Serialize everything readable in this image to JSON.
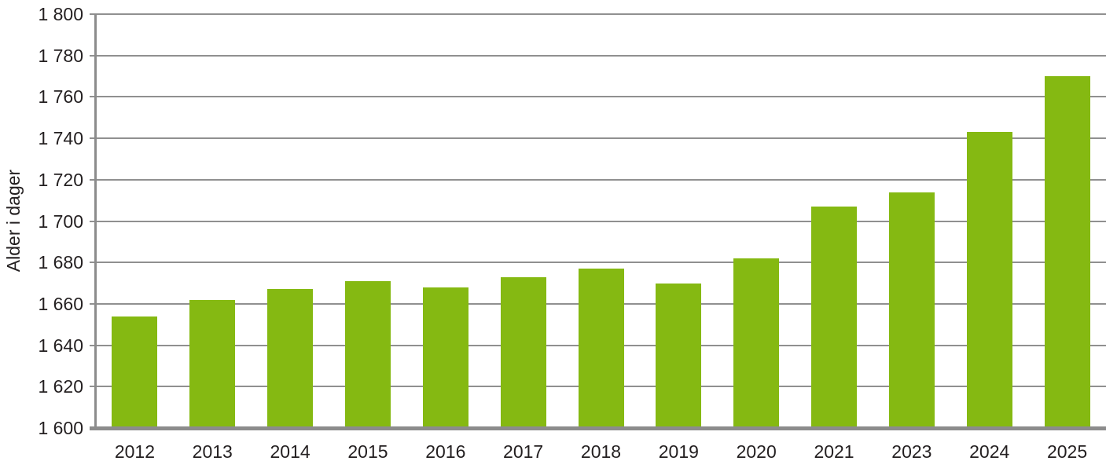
{
  "chart_data": {
    "type": "bar",
    "title": "",
    "xlabel": "",
    "ylabel": "Alder i dager",
    "categories": [
      "2012",
      "2013",
      "2014",
      "2015",
      "2016",
      "2017",
      "2018",
      "2019",
      "2020",
      "2021",
      "2023",
      "2024",
      "2025"
    ],
    "values": [
      1654,
      1662,
      1667,
      1671,
      1668,
      1673,
      1677,
      1670,
      1682,
      1707,
      1714,
      1743,
      1770
    ],
    "ylim": [
      1600,
      1800
    ],
    "ytick_step": 20,
    "ytick_labels": [
      "1 600",
      "1 620",
      "1 640",
      "1 660",
      "1 680",
      "1 700",
      "1 720",
      "1 740",
      "1 760",
      "1 780",
      "1 800"
    ],
    "grid": true,
    "legend_position": "none",
    "bar_color": "#85b912",
    "grid_color": "#909090",
    "axis_color": "#8c8c8c",
    "text_color": "#231f20"
  }
}
